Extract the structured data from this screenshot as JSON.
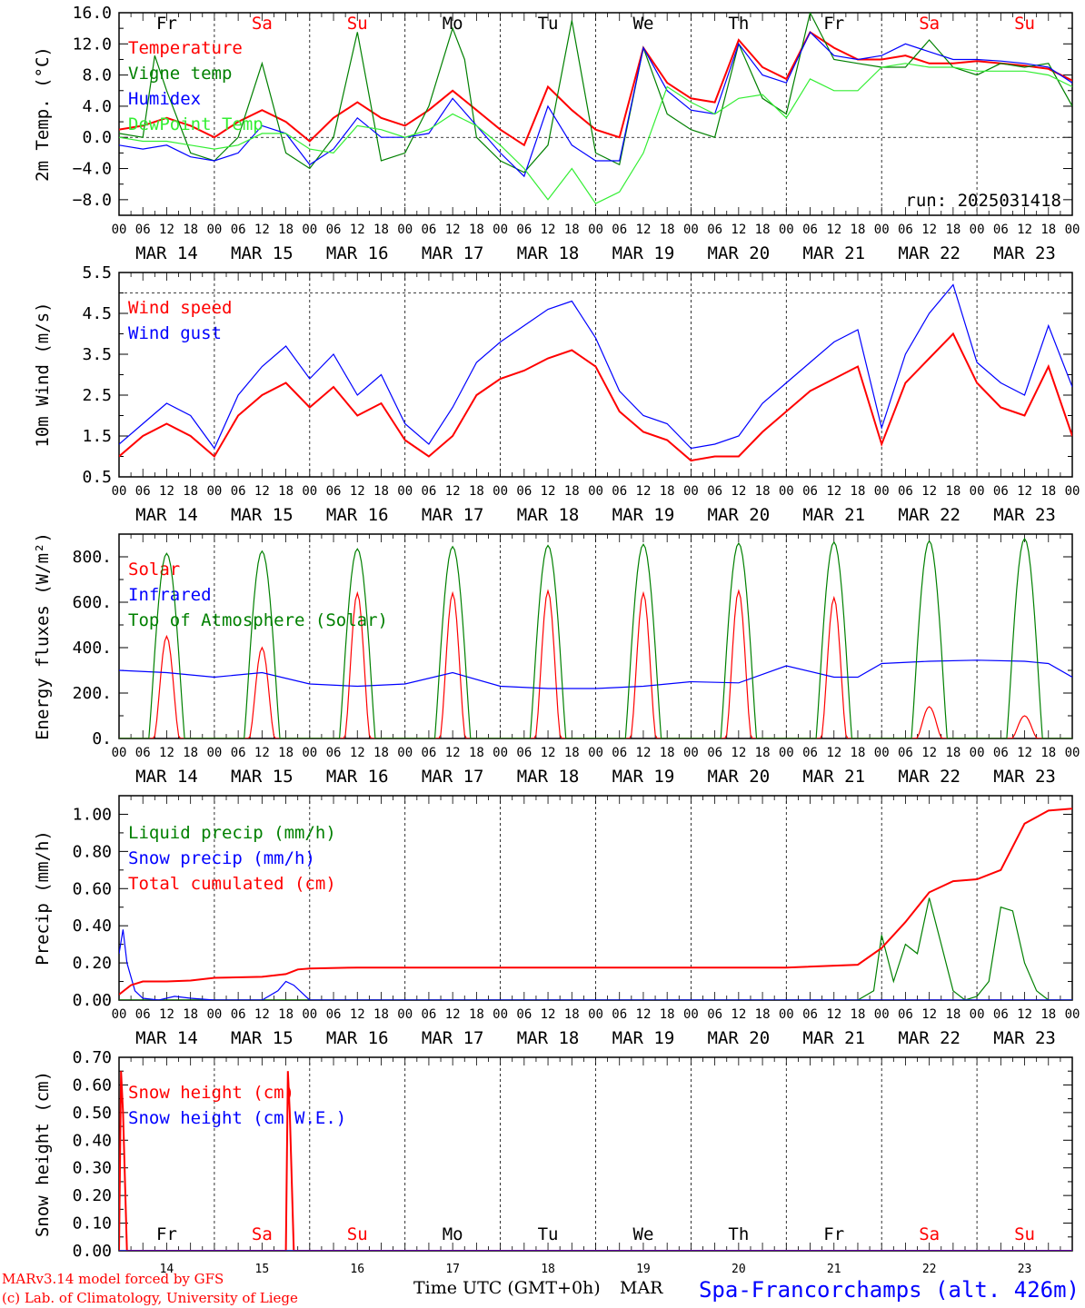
{
  "colors": {
    "red": "#ff0000",
    "blue": "#0000ff",
    "green": "#008000",
    "lightgreen": "#33ee33",
    "black": "#000000",
    "weekend": "#ff0000"
  },
  "days": [
    "Fr",
    "Sa",
    "Su",
    "Mo",
    "Tu",
    "We",
    "Th",
    "Fr",
    "Sa",
    "Su"
  ],
  "weekend_flags": [
    false,
    true,
    true,
    false,
    false,
    false,
    false,
    false,
    true,
    true
  ],
  "date_labels": [
    "MAR 14",
    "MAR 15",
    "MAR 16",
    "MAR 17",
    "MAR 18",
    "MAR 19",
    "MAR 20",
    "MAR 21",
    "MAR 22",
    "MAR 23"
  ],
  "hour_ticks": [
    "00",
    "06",
    "12",
    "18"
  ],
  "final_hour_tick": "00",
  "bottom_day_numbers": [
    "14",
    "15",
    "16",
    "17",
    "18",
    "19",
    "20",
    "21",
    "22",
    "23"
  ],
  "footer": {
    "model": "MARv3.14 model forced by GFS",
    "copyright": "(c) Lab. of Climatology, University of Liege",
    "xlabel": "Time UTC (GMT+0h)",
    "month": "MAR",
    "station": "Spa-Francorchamps (alt. 426m)"
  },
  "chart_data": [
    {
      "type": "line",
      "ylabel": "2m Temp. (°C)",
      "ylim": [
        -10,
        16
      ],
      "yticks": [
        16,
        12,
        8,
        4,
        0,
        -4,
        -8
      ],
      "ytick_labels": [
        "16.0",
        "12.0",
        "8.0",
        "4.0",
        "0.0",
        "−4.0",
        "−8.0"
      ],
      "dashed_ref": 0,
      "annotation": "run: 2025031418",
      "x_unit": "hours since MAR 14 00 UTC",
      "series": [
        {
          "name": "Temperature",
          "color": "red",
          "x": [
            0,
            6,
            12,
            18,
            24,
            30,
            36,
            42,
            48,
            54,
            60,
            66,
            72,
            78,
            84,
            90,
            96,
            102,
            108,
            114,
            120,
            126,
            132,
            138,
            144,
            150,
            156,
            162,
            168,
            174,
            180,
            186,
            192,
            198,
            204,
            210,
            216,
            222,
            228,
            234,
            240
          ],
          "y": [
            1,
            1.5,
            2.5,
            1.5,
            0,
            2,
            3.5,
            2,
            -0.5,
            2.5,
            4.5,
            2.5,
            1.5,
            3.5,
            6,
            3.5,
            1,
            -1,
            6.5,
            3.5,
            1,
            0,
            11.5,
            7,
            5,
            4.5,
            12.5,
            9,
            7.5,
            13.5,
            11.5,
            10,
            10,
            10.5,
            9.5,
            9.5,
            9.8,
            9.5,
            9.2,
            8.8,
            7.3
          ]
        },
        {
          "name": "Vigne temp",
          "color": "green",
          "x": [
            0,
            6,
            9,
            12,
            18,
            24,
            30,
            36,
            42,
            48,
            54,
            60,
            66,
            72,
            78,
            84,
            87,
            90,
            96,
            102,
            108,
            114,
            120,
            126,
            132,
            138,
            144,
            150,
            156,
            162,
            168,
            174,
            180,
            186,
            192,
            198,
            204,
            210,
            216,
            222,
            228,
            234,
            240
          ],
          "y": [
            0.5,
            0,
            10.5,
            6,
            -2,
            -3,
            0,
            9.5,
            -2,
            -4,
            0,
            13.5,
            -3,
            -2,
            4,
            14,
            10,
            0,
            -3,
            -4.5,
            -1,
            15,
            -2,
            -3.5,
            11.5,
            3,
            1,
            0,
            12,
            5,
            3,
            16,
            10,
            9.5,
            9,
            9,
            12.5,
            9,
            8,
            9.5,
            9,
            9.5,
            4
          ]
        },
        {
          "name": "Humidex",
          "color": "blue",
          "x": [
            0,
            6,
            12,
            18,
            24,
            30,
            36,
            42,
            48,
            54,
            60,
            66,
            72,
            78,
            84,
            90,
            96,
            102,
            108,
            114,
            120,
            126,
            132,
            138,
            144,
            150,
            156,
            162,
            168,
            174,
            180,
            186,
            192,
            198,
            204,
            210,
            216,
            222,
            228,
            234,
            240
          ],
          "y": [
            -1,
            -1.5,
            -1,
            -2.5,
            -3,
            -2,
            1.5,
            0.5,
            -3.5,
            -1.5,
            2.5,
            0,
            0,
            0.5,
            5,
            1.5,
            -2,
            -5,
            4,
            -1,
            -3,
            -3,
            11.5,
            6,
            3.5,
            3,
            12,
            8,
            7,
            13.5,
            10.5,
            10,
            10.5,
            12,
            11,
            10,
            10,
            9.8,
            9.5,
            9,
            7
          ]
        },
        {
          "name": "DewPoint Temp",
          "color": "lightgreen",
          "x": [
            0,
            6,
            12,
            18,
            24,
            30,
            36,
            42,
            48,
            54,
            60,
            66,
            72,
            78,
            84,
            90,
            96,
            102,
            108,
            114,
            120,
            126,
            132,
            138,
            144,
            150,
            156,
            162,
            168,
            174,
            180,
            186,
            192,
            198,
            204,
            210,
            216,
            222,
            228,
            234,
            240
          ],
          "y": [
            0,
            -0.5,
            -0.5,
            -1,
            -1.5,
            -1,
            0.5,
            0.5,
            -1.5,
            -2,
            1.5,
            1,
            0,
            1,
            3,
            1.5,
            -1,
            -4,
            -8,
            -4,
            -8.5,
            -7,
            -2,
            6.5,
            4.5,
            3,
            5,
            5.5,
            2.5,
            7.5,
            6,
            6,
            9,
            9.5,
            9,
            9,
            8.5,
            8.5,
            8.5,
            8,
            6.5
          ]
        }
      ]
    },
    {
      "type": "line",
      "ylabel": "10m Wind (m/s)",
      "ylim": [
        0.5,
        5.5
      ],
      "yticks": [
        5.5,
        4.5,
        3.5,
        2.5,
        1.5,
        0.5
      ],
      "ytick_labels": [
        "5.5",
        "4.5",
        "3.5",
        "2.5",
        "1.5",
        "0.5"
      ],
      "dashed_ref": 5.0,
      "series": [
        {
          "name": "Wind speed",
          "color": "red",
          "x": [
            0,
            6,
            12,
            18,
            24,
            30,
            36,
            42,
            48,
            54,
            60,
            66,
            72,
            78,
            84,
            90,
            96,
            102,
            108,
            114,
            120,
            126,
            132,
            138,
            144,
            150,
            156,
            162,
            168,
            174,
            180,
            186,
            192,
            198,
            204,
            210,
            216,
            222,
            228,
            234,
            240
          ],
          "y": [
            1,
            1.5,
            1.8,
            1.5,
            1,
            2,
            2.5,
            2.8,
            2.2,
            2.7,
            2,
            2.3,
            1.4,
            1,
            1.5,
            2.5,
            2.9,
            3.1,
            3.4,
            3.6,
            3.2,
            2.1,
            1.6,
            1.4,
            0.9,
            1,
            1,
            1.6,
            2.1,
            2.6,
            2.9,
            3.2,
            1.3,
            2.8,
            3.4,
            4,
            2.8,
            2.2,
            2,
            3.2,
            1.5
          ]
        },
        {
          "name": "Wind gust",
          "color": "blue",
          "x": [
            0,
            6,
            12,
            18,
            24,
            30,
            36,
            42,
            48,
            54,
            60,
            66,
            72,
            78,
            84,
            90,
            96,
            102,
            108,
            114,
            120,
            126,
            132,
            138,
            144,
            150,
            156,
            162,
            168,
            174,
            180,
            186,
            192,
            198,
            204,
            210,
            216,
            222,
            228,
            234,
            240
          ],
          "y": [
            1.3,
            1.8,
            2.3,
            2,
            1.2,
            2.5,
            3.2,
            3.7,
            2.9,
            3.5,
            2.5,
            3,
            1.8,
            1.3,
            2.2,
            3.3,
            3.8,
            4.2,
            4.6,
            4.8,
            3.9,
            2.6,
            2,
            1.8,
            1.2,
            1.3,
            1.5,
            2.3,
            2.8,
            3.3,
            3.8,
            4.1,
            1.7,
            3.5,
            4.5,
            5.2,
            3.3,
            2.8,
            2.5,
            4.2,
            2.7
          ]
        }
      ]
    },
    {
      "type": "line",
      "ylabel": "Energy fluxes (W/m²)",
      "ylim": [
        0,
        900
      ],
      "yticks": [
        800,
        600,
        400,
        200,
        0
      ],
      "ytick_labels": [
        "800.",
        "600.",
        "400.",
        "200.",
        "0."
      ],
      "series": [
        {
          "name": "Solar",
          "color": "red",
          "peaks": [
            450,
            400,
            640,
            640,
            650,
            640,
            650,
            620,
            140,
            100
          ]
        },
        {
          "name": "Infrared",
          "color": "blue",
          "x": [
            0,
            12,
            24,
            36,
            48,
            60,
            72,
            84,
            96,
            108,
            120,
            132,
            144,
            156,
            168,
            180,
            186,
            192,
            204,
            216,
            228,
            234,
            240
          ],
          "y": [
            300,
            290,
            270,
            290,
            240,
            230,
            240,
            290,
            230,
            220,
            220,
            230,
            250,
            245,
            320,
            270,
            270,
            330,
            340,
            345,
            340,
            330,
            270
          ]
        },
        {
          "name": "Top of Atmosphere (Solar)",
          "color": "green",
          "peaks": [
            815,
            825,
            835,
            845,
            850,
            855,
            860,
            865,
            870,
            880
          ]
        }
      ]
    },
    {
      "type": "line",
      "ylabel": "Precip (mm/h)",
      "ylim": [
        0,
        1.1
      ],
      "yticks": [
        1.0,
        0.8,
        0.6,
        0.4,
        0.2,
        0.0
      ],
      "ytick_labels": [
        "1.00",
        "0.80",
        "0.60",
        "0.40",
        "0.20",
        "0.00"
      ],
      "series": [
        {
          "name": "Liquid precip (mm/h)",
          "color": "green",
          "x": [
            0,
            186,
            190,
            192,
            195,
            198,
            201,
            204,
            207,
            210,
            213,
            216,
            219,
            222,
            225,
            228,
            231,
            234,
            237,
            240
          ],
          "y": [
            0,
            0,
            0.05,
            0.35,
            0.1,
            0.3,
            0.25,
            0.55,
            0.3,
            0.05,
            0,
            0.02,
            0.1,
            0.5,
            0.48,
            0.2,
            0.05,
            0,
            0,
            0
          ]
        },
        {
          "name": "Snow precip (mm/h)",
          "color": "blue",
          "x": [
            0,
            1,
            2,
            4,
            6,
            10,
            14,
            18,
            24,
            36,
            40,
            42,
            44,
            48,
            240
          ],
          "y": [
            0.25,
            0.38,
            0.2,
            0.05,
            0.01,
            0,
            0.02,
            0.01,
            0,
            0,
            0.05,
            0.1,
            0.08,
            0,
            0
          ]
        },
        {
          "name": "Total cumulated (cm)",
          "color": "red",
          "x": [
            0,
            3,
            6,
            12,
            18,
            24,
            36,
            42,
            45,
            48,
            60,
            96,
            120,
            168,
            186,
            192,
            198,
            204,
            210,
            216,
            222,
            228,
            234,
            240
          ],
          "y": [
            0.03,
            0.08,
            0.1,
            0.1,
            0.105,
            0.12,
            0.125,
            0.14,
            0.165,
            0.17,
            0.175,
            0.175,
            0.175,
            0.175,
            0.19,
            0.28,
            0.42,
            0.58,
            0.64,
            0.65,
            0.7,
            0.95,
            1.02,
            1.03
          ]
        }
      ]
    },
    {
      "type": "line",
      "ylabel": "Snow height (cm)",
      "ylim": [
        0,
        0.7
      ],
      "yticks": [
        0.7,
        0.6,
        0.5,
        0.4,
        0.3,
        0.2,
        0.1,
        0.0
      ],
      "ytick_labels": [
        "0.70",
        "0.60",
        "0.50",
        "0.40",
        "0.30",
        "0.20",
        "0.10",
        "0.00"
      ],
      "series": [
        {
          "name": "Snow height (cm)",
          "color": "red",
          "x": [
            0,
            0.5,
            1,
            2,
            42,
            42.5,
            43,
            44,
            240
          ],
          "y": [
            0,
            0.65,
            0.5,
            0,
            0,
            0.65,
            0.5,
            0,
            0
          ]
        },
        {
          "name": "Snow height (cm W.E.)",
          "color": "blue",
          "x": [
            0,
            240
          ],
          "y": [
            0,
            0
          ]
        }
      ]
    }
  ]
}
